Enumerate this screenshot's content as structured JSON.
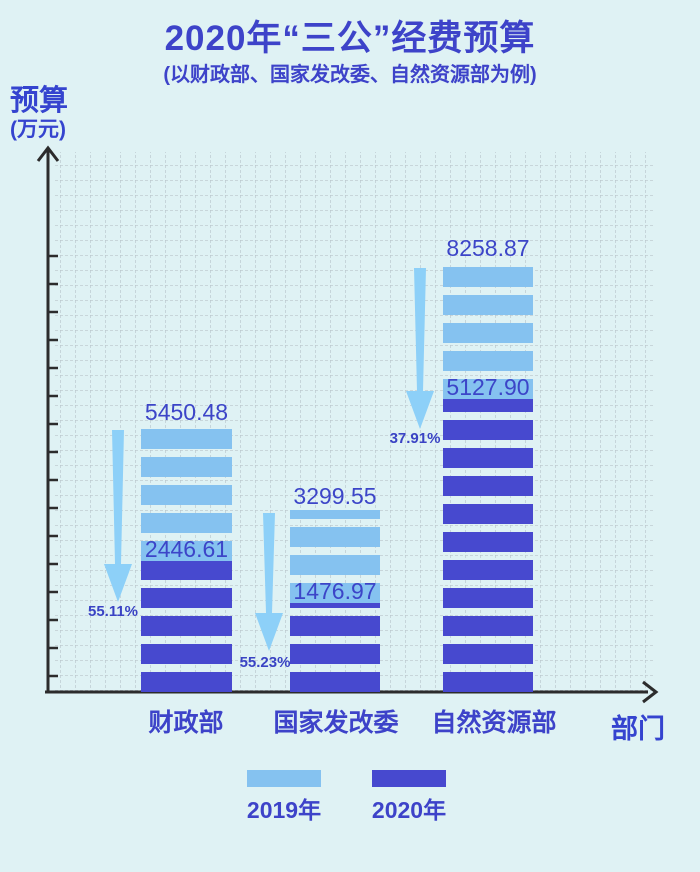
{
  "title": "2020年“三公”经费预算",
  "subtitle": "(以财政部、国家发改委、自然资源部为例)",
  "y_axis": {
    "line1": "预算",
    "line2": "(万元)"
  },
  "x_axis": {
    "label": "部门"
  },
  "legend": [
    {
      "label": "2019年",
      "color": "#85c2f0"
    },
    {
      "label": "2020年",
      "color": "#4749cf"
    }
  ],
  "groups": [
    {
      "category": "财政部",
      "v2019": "5450.48",
      "v2020": "2446.61",
      "decrease": "55.11%"
    },
    {
      "category": "国家发改委",
      "v2019": "3299.55",
      "v2020": "1476.97",
      "decrease": "55.23%"
    },
    {
      "category": "自然资源部",
      "v2019": "8258.87",
      "v2020": "5127.90",
      "decrease": "37.91%"
    }
  ],
  "colors": {
    "background": "#dff2f4",
    "title_text": "#3d43c9",
    "bar_2019": "#85c2f0",
    "bar_2020": "#4749cf",
    "arrow": "#8dd0f8",
    "axis": "#2c2c2c",
    "grid": "#b9c5cb"
  },
  "chart_data": {
    "type": "bar",
    "title": "2020年“三公”经费预算",
    "subtitle": "(以财政部、国家发改委、自然资源部为例)",
    "xlabel": "部门",
    "ylabel": "预算(万元)",
    "categories": [
      "财政部",
      "国家发改委",
      "自然资源部"
    ],
    "series": [
      {
        "name": "2019年",
        "color": "#85c2f0",
        "values": [
          5450.48,
          3299.55,
          8258.87
        ]
      },
      {
        "name": "2020年",
        "color": "#4749cf",
        "values": [
          2446.61,
          1476.97,
          5127.9
        ]
      }
    ],
    "annotations": [
      {
        "category": "财政部",
        "label": "55.11%",
        "meaning": "decrease from 2019 to 2020"
      },
      {
        "category": "国家发改委",
        "label": "55.23%",
        "meaning": "decrease from 2019 to 2020"
      },
      {
        "category": "自然资源部",
        "label": "37.91%",
        "meaning": "decrease from 2019 to 2020"
      }
    ],
    "legend_position": "bottom",
    "grid": true,
    "bar_style": "horizontal-striped segments, 2020 bar overlaid at bottom of 2019 bar"
  }
}
